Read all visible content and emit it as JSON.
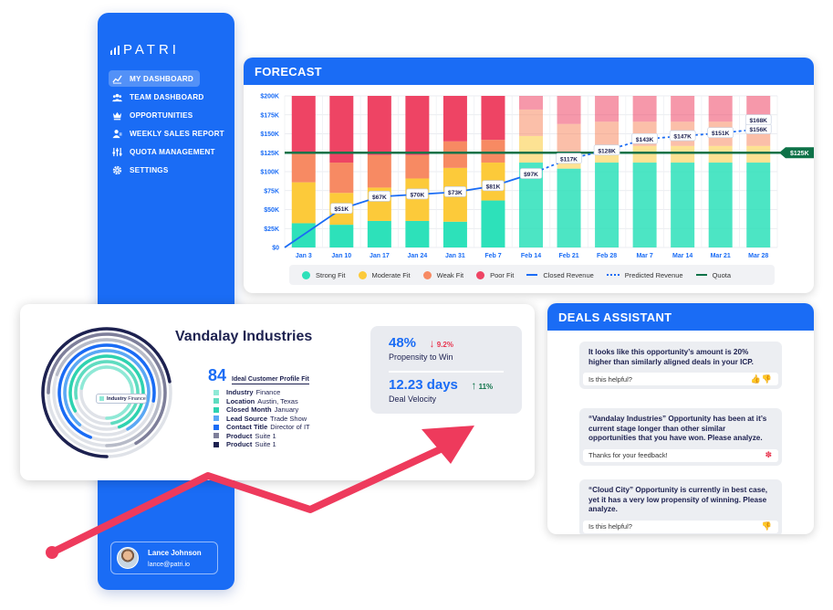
{
  "brand": {
    "logo_text": "PATRI"
  },
  "sidebar": {
    "items": [
      {
        "label": "MY DASHBOARD",
        "icon": "trend-icon",
        "active": true
      },
      {
        "label": "TEAM DASHBOARD",
        "icon": "team-icon",
        "active": false
      },
      {
        "label": "OPPORTUNITIES",
        "icon": "crown-icon",
        "active": false
      },
      {
        "label": "WEEKLY SALES REPORT",
        "icon": "user-report-icon",
        "active": false
      },
      {
        "label": "QUOTA MANAGEMENT",
        "icon": "sliders-icon",
        "active": false
      },
      {
        "label": "SETTINGS",
        "icon": "gear-icon",
        "active": false
      }
    ],
    "user": {
      "name": "Lance Johnson",
      "email": "lance@patri.io"
    }
  },
  "forecast": {
    "title": "FORECAST",
    "legend": {
      "strong": "Strong Fit",
      "moderate": "Moderate Fit",
      "weak": "Weak Fit",
      "poor": "Poor Fit",
      "closed": "Closed Revenue",
      "predicted": "Predicted Revenue",
      "quota": "Quota"
    },
    "colors": {
      "strong": "#2de1ba",
      "moderate": "#fcca3a",
      "weak": "#f78a63",
      "poor": "#ee4464",
      "line": "#1a6cf5",
      "quota": "#0e7248"
    }
  },
  "chart_data": {
    "type": "bar",
    "categories": [
      "Jan 3",
      "Jan 10",
      "Jan 17",
      "Jan 24",
      "Jan 31",
      "Feb 7",
      "Feb 14",
      "Feb 21",
      "Feb 28",
      "Mar 7",
      "Mar 14",
      "Mar 21",
      "Mar 28"
    ],
    "y_ticks": [
      "$0",
      "$25K",
      "$50K",
      "$75K",
      "$100K",
      "$125K",
      "$150K",
      "$175K",
      "$200K"
    ],
    "ylim": [
      0,
      200
    ],
    "series": [
      {
        "name": "Strong Fit",
        "values": [
          32,
          30,
          35,
          35,
          34,
          62,
          112,
          104,
          112,
          112,
          112,
          112,
          112
        ]
      },
      {
        "name": "Moderate Fit",
        "values": [
          54,
          42,
          44,
          56,
          71,
          50,
          35,
          22,
          22,
          22,
          22,
          22,
          22
        ]
      },
      {
        "name": "Weak Fit",
        "values": [
          38,
          40,
          43,
          31,
          35,
          30,
          35,
          37,
          32,
          32,
          32,
          32,
          32
        ]
      },
      {
        "name": "Poor Fit",
        "values": [
          76,
          88,
          78,
          78,
          60,
          58,
          18,
          37,
          34,
          34,
          34,
          34,
          34
        ]
      }
    ],
    "closed_revenue": {
      "x": [
        "Jan 3",
        "Jan 10",
        "Jan 17",
        "Jan 24",
        "Jan 31",
        "Feb 7",
        "Feb 14"
      ],
      "values": [
        0,
        51,
        67,
        70,
        73,
        81,
        97
      ]
    },
    "predicted_revenue": {
      "x": [
        "Feb 14",
        "Feb 21",
        "Feb 28",
        "Mar 7",
        "Mar 14",
        "Mar 21",
        "Mar 28"
      ],
      "values": [
        97,
        117,
        128,
        143,
        147,
        151,
        156
      ]
    },
    "point_labels": [
      {
        "x": "Jan 10",
        "y": 51,
        "text": "$51K"
      },
      {
        "x": "Jan 17",
        "y": 67,
        "text": "$67K"
      },
      {
        "x": "Jan 24",
        "y": 70,
        "text": "$70K"
      },
      {
        "x": "Jan 31",
        "y": 73,
        "text": "$73K"
      },
      {
        "x": "Feb 7",
        "y": 81,
        "text": "$81K"
      },
      {
        "x": "Feb 14",
        "y": 97,
        "text": "$97K"
      },
      {
        "x": "Feb 21",
        "y": 117,
        "text": "$117K"
      },
      {
        "x": "Feb 28",
        "y": 128,
        "text": "$128K"
      },
      {
        "x": "Mar 7",
        "y": 143,
        "text": "$143K"
      },
      {
        "x": "Mar 14",
        "y": 147,
        "text": "$147K"
      },
      {
        "x": "Mar 21",
        "y": 151,
        "text": "$151K"
      },
      {
        "x": "Mar 28",
        "y": 156,
        "text": "$156K"
      },
      {
        "x": "Mar 28",
        "y": 168,
        "text": "$168K"
      }
    ],
    "quota": {
      "value": 125,
      "label": "$125K"
    }
  },
  "company": {
    "name": "Vandalay Industries",
    "ring_tag_label": "Industry",
    "ring_tag_value": "Finance",
    "icp_score": "84",
    "icp_label": "Ideal Customer Profile Fit",
    "attributes": [
      {
        "label": "Industry",
        "value": "Finance",
        "color": "#8fe9d6"
      },
      {
        "label": "Location",
        "value": "Austin, Texas",
        "color": "#5fdcc0"
      },
      {
        "label": "Closed Month",
        "value": "January",
        "color": "#2ed3b0"
      },
      {
        "label": "Lead Source",
        "value": "Trade Show",
        "color": "#5aa8f5"
      },
      {
        "label": "Contact Title",
        "value": "Director of IT",
        "color": "#1a6cf5"
      },
      {
        "label": "Product",
        "value": "Suite 1",
        "color": "#7e7f9a"
      },
      {
        "label": "Product",
        "value": "Suite 1",
        "color": "#1d2150"
      }
    ],
    "propensity": {
      "value": "48%",
      "delta": "9.2%",
      "label": "Propensity to Win",
      "delta_color": "#e8344e"
    },
    "velocity": {
      "value": "12.23 days",
      "delta": "11%",
      "label": "Deal Velocity",
      "delta_color": "#0e7248"
    }
  },
  "deals": {
    "title": "DEALS ASSISTANT",
    "messages": [
      {
        "text": "It looks like this opportunity’s amount is 20% higher than similarly aligned deals in your ICP.",
        "footer": "Is this helpful?",
        "reaction": "thumbs"
      },
      {
        "text": "“Vandalay Industries” Opportunity has been at it’s current stage longer than other similar opportunities that you have won. Please analyze.",
        "footer": "Thanks for your feedback!",
        "reaction": "party"
      },
      {
        "text": "“Cloud City” Opportunity is currently in best case, yet it has a very low propensity of winning. Please analyze.",
        "footer": "Is this helpful?",
        "reaction": "thumbs"
      }
    ]
  }
}
